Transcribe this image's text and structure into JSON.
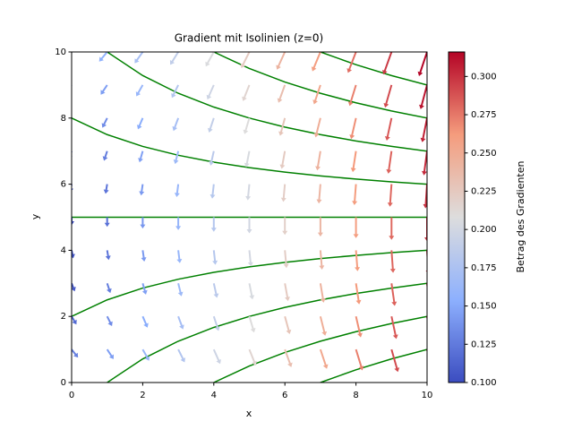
{
  "chart_data": {
    "type": "quiver",
    "title": "Gradient mit Isolinien (z=0)",
    "x_label": "x",
    "y_label": "y",
    "colorbar_label": "Betrag des Gradienten",
    "colormap": "coolwarm",
    "xlim": [
      0,
      10
    ],
    "ylim": [
      0,
      10
    ],
    "xticks": [
      0,
      2,
      4,
      6,
      8,
      10
    ],
    "yticks": [
      0,
      2,
      4,
      6,
      8,
      10
    ],
    "clim": [
      0.1,
      0.316
    ],
    "cticks": [
      {
        "value": 0.1,
        "label": "0.100"
      },
      {
        "value": 0.125,
        "label": "0.125"
      },
      {
        "value": 0.15,
        "label": "0.150"
      },
      {
        "value": 0.175,
        "label": "0.175"
      },
      {
        "value": 0.2,
        "label": "0.200"
      },
      {
        "value": 0.225,
        "label": "0.225"
      },
      {
        "value": 0.25,
        "label": "0.250"
      },
      {
        "value": 0.275,
        "label": "0.275"
      },
      {
        "value": 0.3,
        "label": "0.300"
      }
    ],
    "x": [
      0,
      1,
      2,
      3,
      4,
      5,
      6,
      7,
      8,
      9,
      10
    ],
    "y": [
      0,
      1,
      2,
      3,
      4,
      5,
      6,
      7,
      8,
      9,
      10
    ],
    "u": [
      [
        0.1,
        0.1,
        0.1,
        0.1,
        0.1,
        0.1,
        0.1,
        0.1,
        0.1,
        0.1,
        0.1
      ],
      [
        0.08,
        0.08,
        0.08,
        0.08,
        0.08,
        0.08,
        0.08,
        0.08,
        0.08,
        0.08,
        0.08
      ],
      [
        0.06,
        0.06,
        0.06,
        0.06,
        0.06,
        0.06,
        0.06,
        0.06,
        0.06,
        0.06,
        0.06
      ],
      [
        0.04,
        0.04,
        0.04,
        0.04,
        0.04,
        0.04,
        0.04,
        0.04,
        0.04,
        0.04,
        0.04
      ],
      [
        0.02,
        0.02,
        0.02,
        0.02,
        0.02,
        0.02,
        0.02,
        0.02,
        0.02,
        0.02,
        0.02
      ],
      [
        0,
        0,
        0,
        0,
        0,
        0,
        0,
        0,
        0,
        0,
        0
      ],
      [
        -0.02,
        -0.02,
        -0.02,
        -0.02,
        -0.02,
        -0.02,
        -0.02,
        -0.02,
        -0.02,
        -0.02,
        -0.02
      ],
      [
        -0.04,
        -0.04,
        -0.04,
        -0.04,
        -0.04,
        -0.04,
        -0.04,
        -0.04,
        -0.04,
        -0.04,
        -0.04
      ],
      [
        -0.06,
        -0.06,
        -0.06,
        -0.06,
        -0.06,
        -0.06,
        -0.06,
        -0.06,
        -0.06,
        -0.06,
        -0.06
      ],
      [
        -0.08,
        -0.08,
        -0.08,
        -0.08,
        -0.08,
        -0.08,
        -0.08,
        -0.08,
        -0.08,
        -0.08,
        -0.08
      ],
      [
        -0.1,
        -0.1,
        -0.1,
        -0.1,
        -0.1,
        -0.1,
        -0.1,
        -0.1,
        -0.1,
        -0.1,
        -0.1
      ]
    ],
    "v": [
      [
        -0.1,
        -0.12,
        -0.14,
        -0.16,
        -0.18,
        -0.2,
        -0.22,
        -0.24,
        -0.26,
        -0.28,
        -0.3
      ],
      [
        -0.1,
        -0.12,
        -0.14,
        -0.16,
        -0.18,
        -0.2,
        -0.22,
        -0.24,
        -0.26,
        -0.28,
        -0.3
      ],
      [
        -0.1,
        -0.12,
        -0.14,
        -0.16,
        -0.18,
        -0.2,
        -0.22,
        -0.24,
        -0.26,
        -0.28,
        -0.3
      ],
      [
        -0.1,
        -0.12,
        -0.14,
        -0.16,
        -0.18,
        -0.2,
        -0.22,
        -0.24,
        -0.26,
        -0.28,
        -0.3
      ],
      [
        -0.1,
        -0.12,
        -0.14,
        -0.16,
        -0.18,
        -0.2,
        -0.22,
        -0.24,
        -0.26,
        -0.28,
        -0.3
      ],
      [
        -0.1,
        -0.12,
        -0.14,
        -0.16,
        -0.18,
        -0.2,
        -0.22,
        -0.24,
        -0.26,
        -0.28,
        -0.3
      ],
      [
        -0.1,
        -0.12,
        -0.14,
        -0.16,
        -0.18,
        -0.2,
        -0.22,
        -0.24,
        -0.26,
        -0.28,
        -0.3
      ],
      [
        -0.1,
        -0.12,
        -0.14,
        -0.16,
        -0.18,
        -0.2,
        -0.22,
        -0.24,
        -0.26,
        -0.28,
        -0.3
      ],
      [
        -0.1,
        -0.12,
        -0.14,
        -0.16,
        -0.18,
        -0.2,
        -0.22,
        -0.24,
        -0.26,
        -0.28,
        -0.3
      ],
      [
        -0.1,
        -0.12,
        -0.14,
        -0.16,
        -0.18,
        -0.2,
        -0.22,
        -0.24,
        -0.26,
        -0.28,
        -0.3
      ],
      [
        -0.1,
        -0.12,
        -0.14,
        -0.16,
        -0.18,
        -0.2,
        -0.22,
        -0.24,
        -0.26,
        -0.28,
        -0.3
      ]
    ],
    "contour_color": "#008000",
    "contours": [
      {
        "x": [
          7,
          8,
          9,
          10
        ],
        "y": [
          0,
          0.385,
          0.714,
          1
        ]
      },
      {
        "x": [
          4,
          5,
          6,
          7,
          8,
          9,
          10
        ],
        "y": [
          0,
          0.5,
          0.909,
          1.25,
          1.538,
          1.786,
          2
        ]
      },
      {
        "x": [
          1,
          2,
          3,
          4,
          5,
          6,
          7,
          8,
          9,
          10
        ],
        "y": [
          0,
          0.714,
          1.25,
          1.667,
          2,
          2.273,
          2.5,
          2.692,
          2.857,
          3
        ]
      },
      {
        "x": [
          0,
          1,
          2,
          3,
          4,
          5,
          6,
          7,
          8,
          9,
          10
        ],
        "y": [
          2,
          2.5,
          2.857,
          3.125,
          3.333,
          3.5,
          3.636,
          3.75,
          3.846,
          3.929,
          4
        ]
      },
      {
        "x": [
          0,
          10
        ],
        "y": [
          5,
          5
        ]
      },
      {
        "x": [
          0,
          1,
          2,
          3,
          4,
          5,
          6,
          7,
          8,
          9,
          10
        ],
        "y": [
          8,
          7.5,
          7.143,
          6.875,
          6.667,
          6.5,
          6.364,
          6.25,
          6.154,
          6.071,
          6
        ]
      },
      {
        "x": [
          1,
          2,
          3,
          4,
          5,
          6,
          7,
          8,
          9,
          10
        ],
        "y": [
          10,
          9.286,
          8.75,
          8.333,
          8,
          7.727,
          7.5,
          7.308,
          7.143,
          7
        ]
      },
      {
        "x": [
          4,
          5,
          6,
          7,
          8,
          9,
          10
        ],
        "y": [
          10,
          9.5,
          9.091,
          8.75,
          8.462,
          8.214,
          8
        ]
      },
      {
        "x": [
          7,
          8,
          9,
          10
        ],
        "y": [
          10,
          9.615,
          9.286,
          9
        ]
      }
    ]
  }
}
